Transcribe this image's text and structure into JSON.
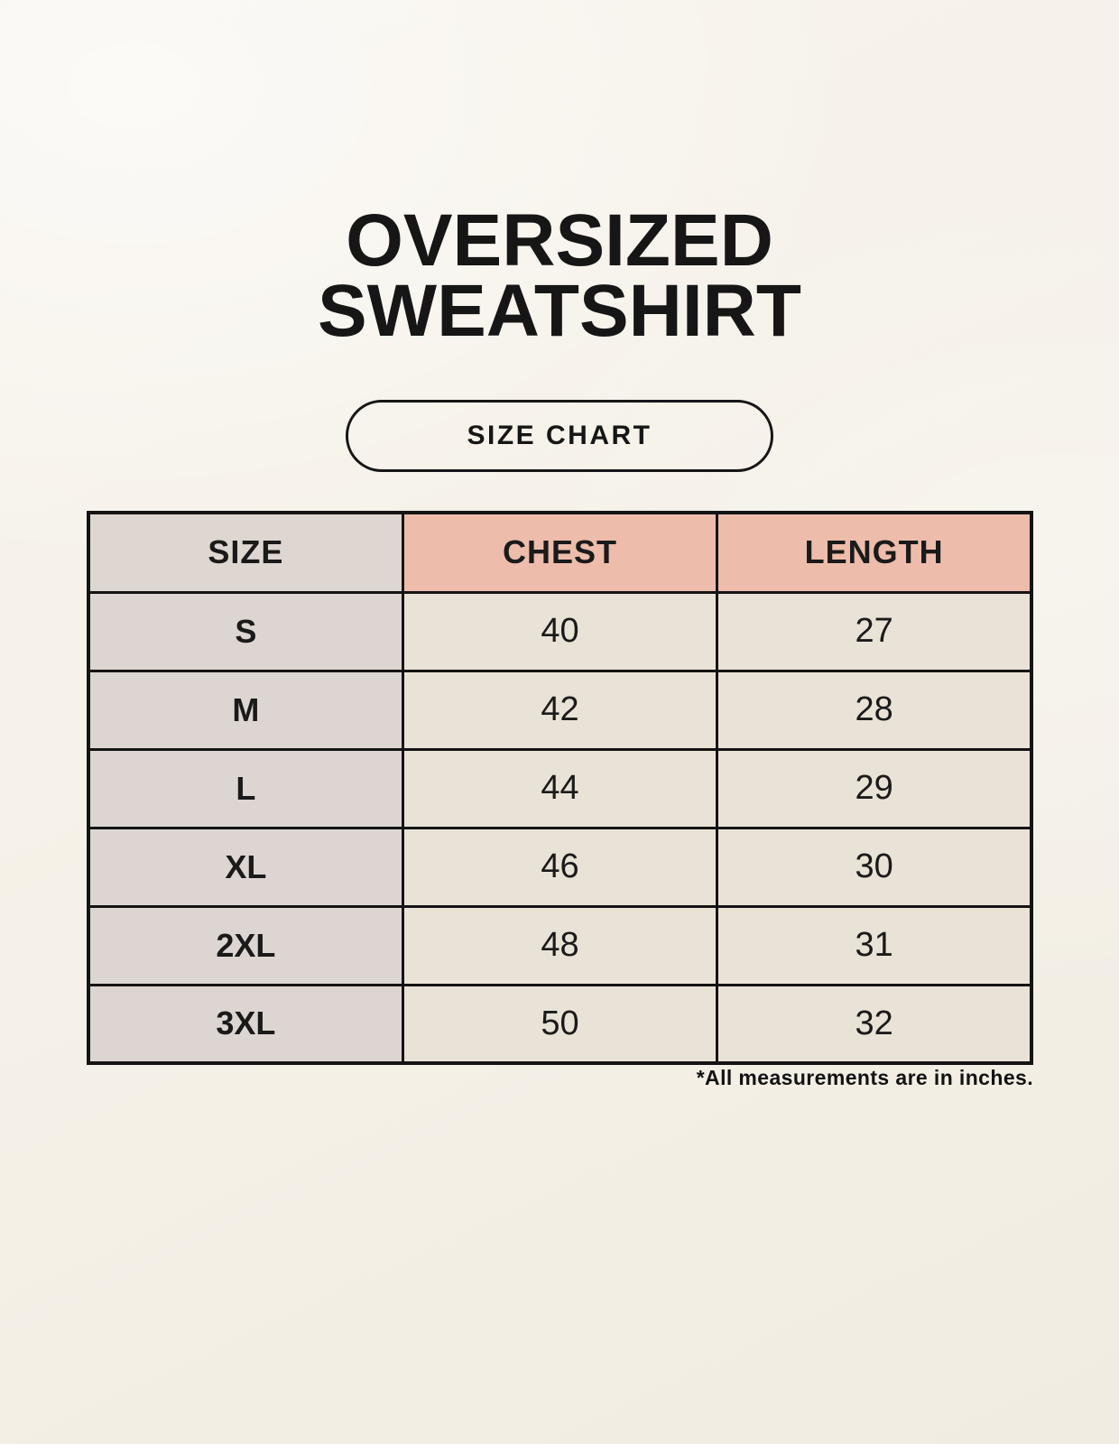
{
  "header": {
    "title_line1": "OVERSIZED",
    "title_line2": "SWEATSHIRT",
    "badge_label": "SIZE CHART"
  },
  "chart_data": {
    "type": "table",
    "title": "OVERSIZED SWEATSHIRT",
    "subtitle": "SIZE CHART",
    "columns": [
      "SIZE",
      "CHEST",
      "LENGTH"
    ],
    "rows": [
      [
        "S",
        "40",
        "27"
      ],
      [
        "M",
        "42",
        "28"
      ],
      [
        "L",
        "44",
        "29"
      ],
      [
        "XL",
        "46",
        "30"
      ],
      [
        "2XL",
        "48",
        "31"
      ],
      [
        "3XL",
        "50",
        "32"
      ]
    ],
    "footnote": "*All measurements are in inches."
  },
  "footnote": "*All measurements are in inches.",
  "colors": {
    "page_background": "#f5f1e8",
    "size_column_bg": "#ddd5d1",
    "measure_header_bg": "#edbcab",
    "data_cell_bg": "#e9e2d6",
    "table_border": "#141414",
    "text": "#161616"
  }
}
